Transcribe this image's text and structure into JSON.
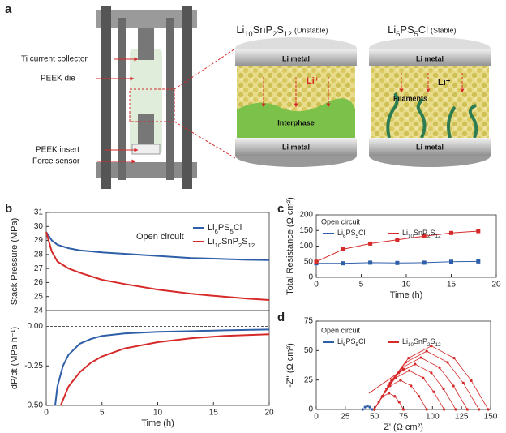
{
  "panel_a": {
    "label": "a",
    "callouts": [
      "Ti current collector",
      "PEEK die",
      "PEEK insert",
      "Force sensor"
    ],
    "left_cell": {
      "electrolyte": "Li10SnP2S12",
      "stability": "(Unstable)",
      "top": "Li metal",
      "bottom": "Li metal",
      "ion": "Li⁺",
      "feature": "Interphase"
    },
    "right_cell": {
      "electrolyte": "Li6PS5Cl",
      "stability": "(Stable)",
      "top": "Li metal",
      "bottom": "Li metal",
      "ion": "Li⁺",
      "feature": "Filaments"
    }
  },
  "panel_labels": [
    "b",
    "c",
    "d"
  ],
  "chart_data": [
    {
      "type": "line",
      "ylabel": "Stack Pressure (MPa)",
      "annotation": "Open circuit",
      "xlim": [
        0,
        20
      ],
      "ylim": [
        24,
        31
      ],
      "yticks": [
        24,
        25,
        26,
        27,
        28,
        29,
        30,
        31
      ],
      "series": [
        {
          "name": "Li6PS5Cl",
          "color": "#2f5fa8",
          "x": [
            0,
            0.5,
            1,
            2,
            3,
            5,
            7,
            10,
            13,
            15,
            18,
            20
          ],
          "values": [
            29.6,
            29.0,
            28.7,
            28.45,
            28.3,
            28.15,
            28.05,
            27.9,
            27.75,
            27.7,
            27.62,
            27.6
          ]
        },
        {
          "name": "Li10SnP2S12",
          "color": "#d62a2a",
          "x": [
            0,
            0.5,
            1,
            2,
            3,
            5,
            7,
            10,
            13,
            15,
            18,
            20
          ],
          "values": [
            29.6,
            28.2,
            27.5,
            27.0,
            26.7,
            26.2,
            25.9,
            25.5,
            25.2,
            25.05,
            24.85,
            24.75
          ]
        }
      ]
    },
    {
      "type": "line",
      "ylabel": "dP/dt (MPa h⁻¹)",
      "xlabel": "Time (h)",
      "zero_line": true,
      "xlim": [
        0,
        20
      ],
      "xticks": [
        0,
        5,
        10,
        15,
        20
      ],
      "ylim": [
        -0.5,
        0.1
      ],
      "yticks": [
        {
          "value": -0.5,
          "label": "-0.50"
        },
        {
          "value": -0.25,
          "label": "-0.25"
        },
        {
          "value": 0,
          "label": "0.00"
        }
      ],
      "series": [
        {
          "name": "Li6PS5Cl",
          "color": "#2f5fa8",
          "x": [
            0.8,
            1,
            1.5,
            2,
            3,
            4,
            5,
            7,
            10,
            13,
            16,
            20
          ],
          "values": [
            -0.5,
            -0.38,
            -0.25,
            -0.18,
            -0.11,
            -0.08,
            -0.06,
            -0.045,
            -0.035,
            -0.03,
            -0.025,
            -0.02
          ]
        },
        {
          "name": "Li10SnP2S12",
          "color": "#d62a2a",
          "x": [
            1.3,
            2,
            3,
            4,
            5,
            7,
            10,
            13,
            16,
            20
          ],
          "values": [
            -0.5,
            -0.38,
            -0.29,
            -0.23,
            -0.19,
            -0.14,
            -0.1,
            -0.075,
            -0.06,
            -0.05
          ]
        }
      ]
    },
    {
      "type": "line",
      "markers": true,
      "ylabel": "Total Resistance (Ω cm²)",
      "xlabel": "Time (h)",
      "annotation": "Open circuit",
      "xlim": [
        0,
        20
      ],
      "xticks": [
        0,
        5,
        10,
        15,
        20
      ],
      "ylim": [
        0,
        200
      ],
      "yticks": [
        0,
        50,
        100,
        150,
        200
      ],
      "series": [
        {
          "name": "Li6PS5Cl",
          "color": "#2f5fa8",
          "x": [
            0,
            3,
            6,
            9,
            12,
            15,
            18
          ],
          "values": [
            45,
            45,
            47,
            46,
            47,
            50,
            51
          ]
        },
        {
          "name": "Li10SnP2S12",
          "color": "#d62a2a",
          "x": [
            0,
            3,
            6,
            9,
            12,
            15,
            18
          ],
          "values": [
            50,
            90,
            108,
            120,
            132,
            142,
            148
          ]
        }
      ]
    },
    {
      "type": "scatter",
      "ylabel": "-Z'' (Ω cm²)",
      "xlabel": "Z' (Ω cm²)",
      "annotation": "Open circuit",
      "xlim": [
        0,
        150
      ],
      "xticks": [
        0,
        25,
        50,
        75,
        100,
        125,
        150
      ],
      "ylim": [
        0,
        75
      ],
      "yticks": [
        0,
        25,
        50,
        75
      ],
      "series": [
        {
          "name": "Li6PS5Cl",
          "color": "#2f5fa8",
          "x": [
            40,
            42,
            44,
            46,
            48
          ],
          "values": [
            0,
            2,
            3,
            2,
            0
          ]
        },
        {
          "name": "Li10SnP2S12",
          "color": "#d62a2a",
          "arcs": [
            {
              "x": [
                50,
                53.8,
                57.5,
                62.5,
                67.5,
                71.3,
                75
              ],
              "values": [
                0,
                6.3,
                11.2,
                13.8,
                11.2,
                6.3,
                0
              ]
            },
            {
              "x": [
                50,
                56.8,
                63.5,
                72.5,
                81.5,
                88.3,
                95
              ],
              "values": [
                0,
                11.3,
                20.1,
                24.8,
                20.1,
                11.3,
                0
              ]
            },
            {
              "x": [
                50,
                59,
                68,
                80,
                92,
                101,
                110
              ],
              "values": [
                0,
                15,
                26.7,
                33,
                26.7,
                15,
                0
              ]
            },
            {
              "x": [
                50,
                60.5,
                71,
                85,
                99,
                109.5,
                120
              ],
              "values": [
                0,
                17.5,
                31.1,
                38.5,
                31.1,
                17.5,
                0
              ]
            },
            {
              "x": [
                50,
                62,
                74,
                90,
                106,
                118,
                130
              ],
              "values": [
                0,
                20,
                35.6,
                44,
                35.6,
                20,
                0
              ]
            },
            {
              "x": [
                50,
                63.5,
                77,
                95,
                113,
                126.5,
                140
              ],
              "values": [
                0,
                22.5,
                40,
                49.5,
                40,
                22.5,
                0
              ]
            },
            {
              "x": [
                50,
                64.7,
                79.4,
                99,
                118.6,
                133.3,
                148
              ],
              "values": [
                0,
                24.5,
                43.6,
                53.9,
                43.6,
                24.5,
                0
              ]
            }
          ]
        }
      ]
    }
  ]
}
